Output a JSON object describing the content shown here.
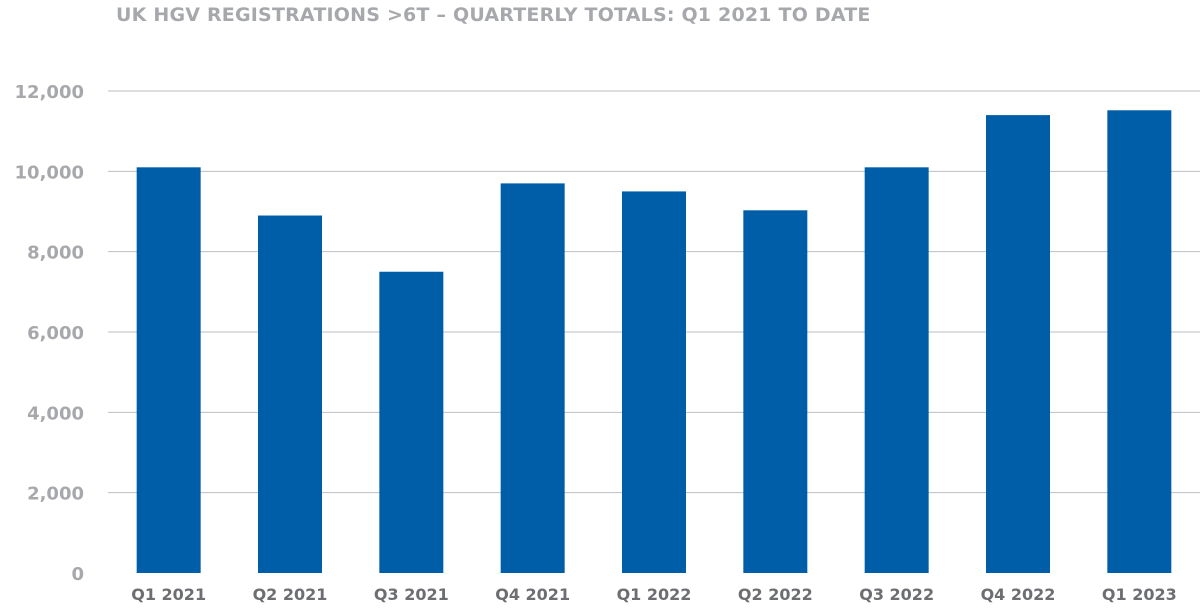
{
  "chart_data": {
    "type": "bar",
    "title": "UK HGV REGISTRATIONS >6T – QUARTERLY TOTALS: Q1 2021 TO DATE",
    "xlabel": "",
    "ylabel": "",
    "categories": [
      "Q1 2021",
      "Q2 2021",
      "Q3 2021",
      "Q4 2021",
      "Q1 2022",
      "Q2 2022",
      "Q3 2022",
      "Q4 2022",
      "Q1 2023"
    ],
    "values": [
      10100,
      8900,
      7500,
      9700,
      9500,
      9030,
      10100,
      11400,
      11520
    ],
    "ylim": [
      0,
      12000
    ],
    "yticks": [
      0,
      2000,
      4000,
      6000,
      8000,
      10000,
      12000
    ],
    "ytick_labels": [
      "0",
      "2,000",
      "4,000",
      "6,000",
      "8,000",
      "10,000",
      "12,000"
    ],
    "grid": true,
    "legend": "none",
    "colors": {
      "bar": "#005ea8",
      "grid": "#bcbec0",
      "title": "#a6a8ab",
      "ytick": "#a6a8ab",
      "xtick": "#6d6e71"
    }
  }
}
